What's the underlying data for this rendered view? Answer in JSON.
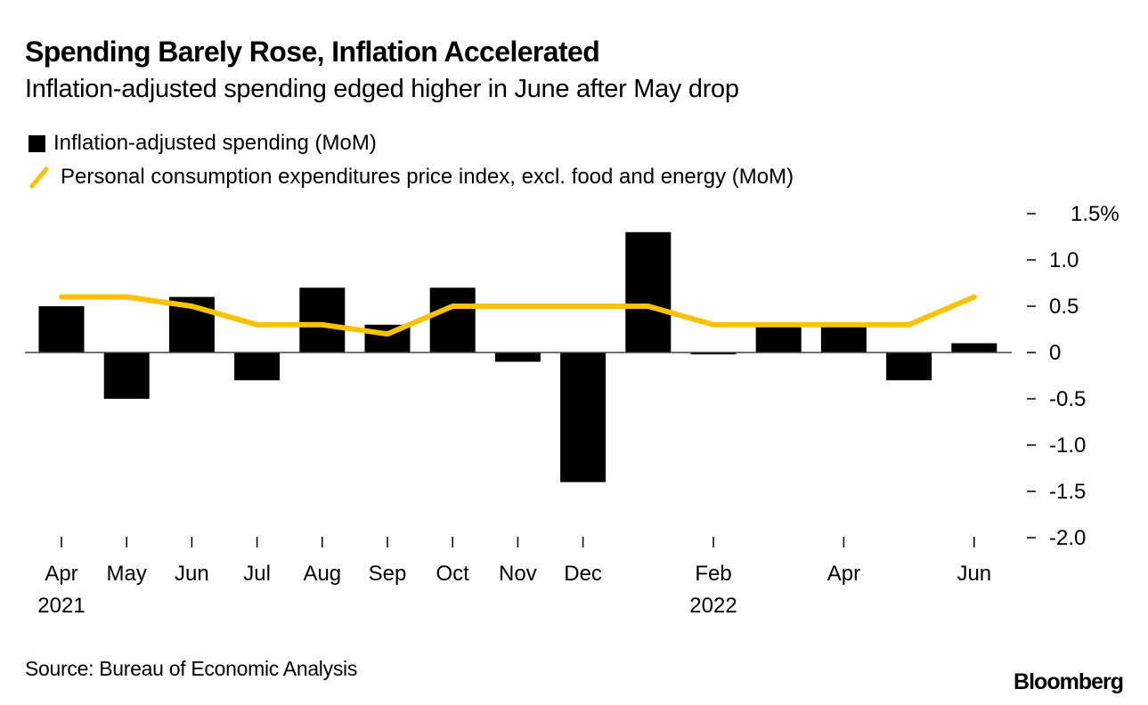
{
  "chart_data": {
    "type": "bar",
    "title": "Spending Barely Rose, Inflation Accelerated",
    "subtitle": "Inflation-adjusted spending edged higher in June after May drop",
    "categories": [
      "Apr 2021",
      "May 2021",
      "Jun 2021",
      "Jul 2021",
      "Aug 2021",
      "Sep 2021",
      "Oct 2021",
      "Nov 2021",
      "Dec 2021",
      "Jan 2022",
      "Feb 2022",
      "Mar 2022",
      "Apr 2022",
      "May 2022",
      "Jun 2022"
    ],
    "series": [
      {
        "name": "Inflation-adjusted spending (MoM)",
        "type": "bar",
        "color": "#000000",
        "values": [
          0.5,
          -0.5,
          0.6,
          -0.3,
          0.7,
          0.3,
          0.7,
          -0.1,
          -1.4,
          1.3,
          -0.02,
          0.3,
          0.3,
          -0.3,
          0.1
        ]
      },
      {
        "name": "Personal consumption expenditures price index, excl. food and energy (MoM)",
        "type": "line",
        "color": "#fbc200",
        "values": [
          0.6,
          0.6,
          0.5,
          0.3,
          0.3,
          0.2,
          0.5,
          0.5,
          0.5,
          0.5,
          0.3,
          0.3,
          0.3,
          0.3,
          0.6
        ]
      }
    ],
    "xlabel": "",
    "ylabel": "",
    "ylim": [
      -2.0,
      1.5
    ],
    "y_ticks": [
      {
        "value": 1.5,
        "label": "1.5%"
      },
      {
        "value": 1.0,
        "label": "1.0"
      },
      {
        "value": 0.5,
        "label": "0.5"
      },
      {
        "value": 0,
        "label": "0"
      },
      {
        "value": -0.5,
        "label": "-0.5"
      },
      {
        "value": -1.0,
        "label": "-1.0"
      },
      {
        "value": -1.5,
        "label": "-1.5"
      },
      {
        "value": -2.0,
        "label": "-2.0"
      }
    ],
    "x_ticks": [
      {
        "index": 0,
        "label": "Apr",
        "year": "2021"
      },
      {
        "index": 1,
        "label": "May",
        "year": ""
      },
      {
        "index": 2,
        "label": "Jun",
        "year": ""
      },
      {
        "index": 3,
        "label": "Jul",
        "year": ""
      },
      {
        "index": 4,
        "label": "Aug",
        "year": ""
      },
      {
        "index": 5,
        "label": "Sep",
        "year": ""
      },
      {
        "index": 6,
        "label": "Oct",
        "year": ""
      },
      {
        "index": 7,
        "label": "Nov",
        "year": ""
      },
      {
        "index": 8,
        "label": "Dec",
        "year": ""
      },
      {
        "index": 10,
        "label": "Feb",
        "year": "2022"
      },
      {
        "index": 12,
        "label": "Apr",
        "year": ""
      },
      {
        "index": 14,
        "label": "Jun",
        "year": ""
      }
    ],
    "y_axis_position": "right",
    "legend_position": "top-left",
    "grid": false
  },
  "footer": {
    "source": "Source: Bureau of Economic Analysis",
    "brand": "Bloomberg"
  }
}
